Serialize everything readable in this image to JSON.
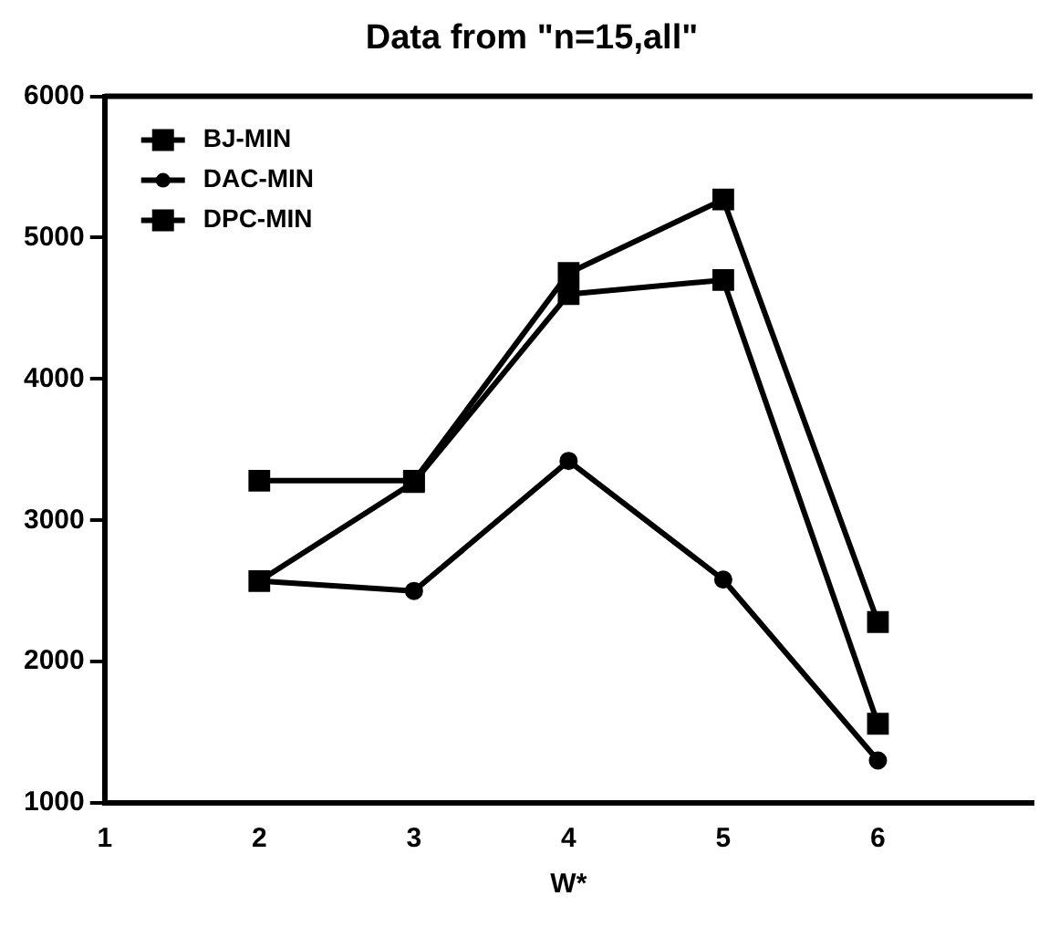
{
  "chart_data": {
    "type": "line",
    "title": "Data from \"n=15,all\"",
    "xlabel": "W*",
    "x": [
      2,
      3,
      4,
      5,
      6
    ],
    "series": [
      {
        "name": "BJ-MIN",
        "color": "#000000",
        "marker": "square",
        "values": [
          2570,
          3270,
          4600,
          4700,
          1560
        ]
      },
      {
        "name": "DAC-MIN",
        "color": "#000000",
        "marker": "circle",
        "values": [
          2570,
          2500,
          3420,
          2580,
          1300
        ]
      },
      {
        "name": "DPC-MIN",
        "color": "#000000",
        "marker": "square",
        "values": [
          3280,
          3280,
          4750,
          5270,
          2280
        ]
      }
    ],
    "xlim": [
      1,
      7
    ],
    "xticks": [
      1,
      2,
      3,
      4,
      5,
      6
    ],
    "ylim": [
      1000,
      6000
    ],
    "yticks": [
      1000,
      2000,
      3000,
      4000,
      5000,
      6000
    ],
    "grid": false,
    "legend": "top left"
  }
}
